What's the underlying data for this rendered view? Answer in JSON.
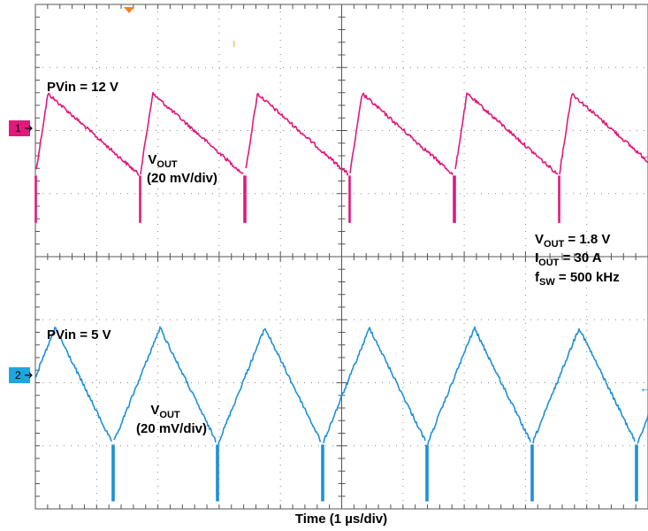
{
  "chart_data": {
    "type": "line",
    "title": "",
    "xlabel": "Time (1 µs/div)",
    "ylabel": "",
    "grid": true,
    "divisions": {
      "horizontal": 10,
      "vertical": 8
    },
    "series": [
      {
        "channel": "1",
        "color": "#e0197d",
        "label_main": "V",
        "label_sub": "OUT",
        "scale": "(20 mV/div)",
        "condition": "PVin = 12 V",
        "shape": "sawtooth",
        "period_div": 1.71,
        "peak_mv": 11,
        "trough_mv": -15,
        "spike_mv": -30,
        "dc_offset_mv": 0
      },
      {
        "channel": "2",
        "color": "#1e90d6",
        "label_main": "V",
        "label_sub": "OUT",
        "scale": "(20 mV/div)",
        "condition": "PVin = 5 V",
        "shape": "triangle",
        "period_div": 1.71,
        "peak_mv": 15,
        "trough_mv": -22,
        "spike_mv": -40,
        "dc_offset_mv": 0
      }
    ],
    "annotations": [
      {
        "main": "V",
        "sub": "OUT",
        "value": " = 1.8 V"
      },
      {
        "main": "I",
        "sub": "OUT",
        "value": " = 30 A"
      },
      {
        "main": "f",
        "sub": "SW",
        "value": " = 500 kHz"
      }
    ]
  }
}
